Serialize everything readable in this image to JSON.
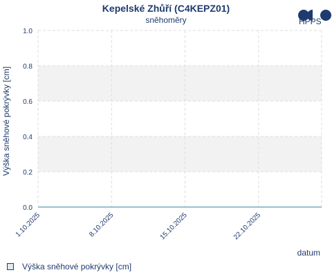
{
  "header": {
    "title": "Kepelské Zhůří (C4KEPZ01)",
    "subtitle": "sněhoměry",
    "logo_text": "HPPS"
  },
  "colors": {
    "text": "#1f3a6e",
    "band": "#f2f2f2",
    "grid": "#dddddd",
    "series": "#5b9bb5"
  },
  "legend": {
    "label": "Výška sněhové pokrývky [cm]"
  },
  "chart_data": {
    "type": "line",
    "title": "Kepelské Zhůří (C4KEPZ01)",
    "subtitle": "sněhoměry",
    "xlabel": "datum",
    "ylabel": "Výška sněhové pokrývky [cm]",
    "xlim": [
      "2025-10-01",
      "2025-10-28"
    ],
    "ylim": [
      0,
      1.0
    ],
    "x_ticks": [
      {
        "date": "2025-10-01",
        "label": "1.10.2025"
      },
      {
        "date": "2025-10-08",
        "label": "8.10.2025"
      },
      {
        "date": "2025-10-15",
        "label": "15.10.2025"
      },
      {
        "date": "2025-10-22",
        "label": "22.10.2025"
      }
    ],
    "y_ticks": [
      {
        "value": 0,
        "label": "0.0"
      },
      {
        "value": 0.2,
        "label": "0.2"
      },
      {
        "value": 0.4,
        "label": "0.4"
      },
      {
        "value": 0.6,
        "label": "0.6"
      },
      {
        "value": 0.8,
        "label": "0.8"
      },
      {
        "value": 1.0,
        "label": "1.0"
      }
    ],
    "grid": true,
    "legend_position": "bottom-left",
    "series": [
      {
        "name": "Výška sněhové pokrývky [cm]",
        "x": [
          "2025-10-01",
          "2025-10-28"
        ],
        "y": [
          0,
          0
        ]
      }
    ]
  }
}
